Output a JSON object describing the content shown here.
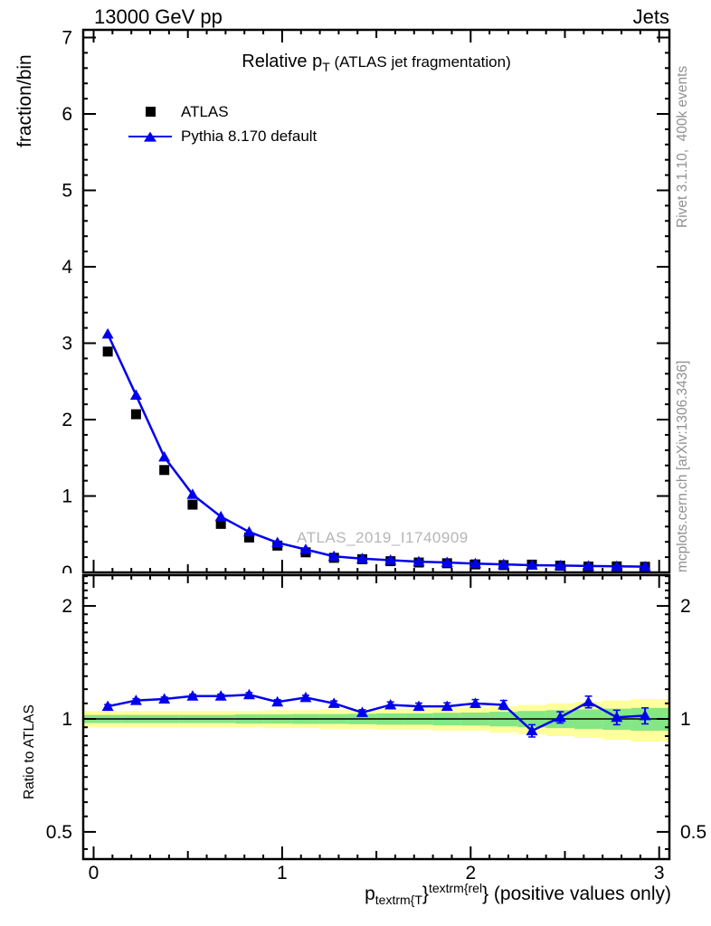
{
  "header": {
    "left": "13000 GeV pp",
    "right": "Jets"
  },
  "title": {
    "main": "Relative p",
    "sub": "T",
    "suffix": " (ATLAS jet fragmentation)"
  },
  "legend": {
    "items": [
      {
        "label": "ATLAS",
        "marker": "black-square"
      },
      {
        "label": "Pythia 8.170 default",
        "marker": "blue-line-triangle"
      }
    ]
  },
  "axis_labels": {
    "top_y": "fraction/bin",
    "ratio_y": "Ratio to ATLAS"
  },
  "xtitle": {
    "p": "p",
    "sub": "textrm{T",
    "brace1": "}",
    "sup": "textrm{rel",
    "brace2": "}",
    "rest": " (positive values only)"
  },
  "side_texts": {
    "top": "Rivet 3.1.10,  400k events",
    "bottom": "mcplots.cern.ch [arXiv:1306.3436]"
  },
  "watermark": "ATLAS_2019_I1740909",
  "colors": {
    "pythia_blue": "#0000ee",
    "atlas_black": "#000000",
    "band_yellow": "#ffff9c",
    "band_green": "#85e685",
    "side_gray": "#909090",
    "watermark_gray": "#b6b6b6"
  },
  "chart_data": {
    "type": "line",
    "title": "Relative pT (ATLAS jet fragmentation)",
    "xlabel": "pT^rel (positive values only)",
    "bin_width": 0.15,
    "x": [
      0.075,
      0.225,
      0.375,
      0.525,
      0.675,
      0.825,
      0.975,
      1.125,
      1.275,
      1.425,
      1.575,
      1.725,
      1.875,
      2.025,
      2.175,
      2.325,
      2.475,
      2.625,
      2.775,
      2.925
    ],
    "panels": [
      {
        "name": "fraction-per-bin",
        "ylabel": "fraction/bin",
        "yscale": "linear",
        "ylim": [
          0,
          7.1
        ],
        "xlim": [
          -0.055,
          3.055
        ],
        "yticks_labeled": [
          0,
          1,
          2,
          3,
          4,
          5,
          6,
          7
        ],
        "xticks_labeled": [
          0,
          1,
          2,
          3
        ],
        "grid": false,
        "series": [
          {
            "name": "ATLAS",
            "marker": "square",
            "color": "#000000",
            "values": [
              2.89,
              2.07,
              1.34,
              0.887,
              0.635,
              0.457,
              0.351,
              0.263,
              0.191,
              0.173,
              0.147,
              0.13,
              0.12,
              0.105,
              0.096,
              0.102,
              0.089,
              0.077,
              0.079,
              0.074
            ]
          },
          {
            "name": "Pythia 8.170 default",
            "marker": "triangle",
            "color": "#0000ee",
            "values": [
              3.12,
              2.32,
              1.51,
              1.02,
              0.73,
              0.53,
              0.39,
              0.3,
              0.21,
              0.18,
              0.16,
              0.14,
              0.13,
              0.115,
              0.105,
              0.095,
              0.09,
              0.085,
              0.08,
              0.075
            ]
          }
        ]
      },
      {
        "name": "ratio-to-atlas",
        "ylabel": "Ratio to ATLAS",
        "yscale": "log",
        "ylim": [
          0.42,
          2.41
        ],
        "yticks_labeled": [
          0.5,
          1,
          2
        ],
        "reference_line": 1.0,
        "ratio": [
          1.08,
          1.12,
          1.13,
          1.15,
          1.15,
          1.16,
          1.11,
          1.14,
          1.1,
          1.04,
          1.09,
          1.08,
          1.08,
          1.1,
          1.09,
          0.93,
          1.01,
          1.11,
          1.01,
          1.02
        ],
        "ratio_err": [
          0.012,
          0.012,
          0.013,
          0.013,
          0.014,
          0.015,
          0.015,
          0.016,
          0.017,
          0.018,
          0.02,
          0.022,
          0.024,
          0.026,
          0.03,
          0.035,
          0.035,
          0.04,
          0.045,
          0.05
        ],
        "band_yellow_half": [
          0.05,
          0.05,
          0.05,
          0.05,
          0.05,
          0.05,
          0.055,
          0.055,
          0.06,
          0.06,
          0.065,
          0.065,
          0.07,
          0.07,
          0.08,
          0.09,
          0.1,
          0.11,
          0.12,
          0.13
        ],
        "band_green_half": [
          0.025,
          0.025,
          0.025,
          0.025,
          0.025,
          0.028,
          0.028,
          0.03,
          0.03,
          0.032,
          0.035,
          0.035,
          0.038,
          0.04,
          0.045,
          0.05,
          0.055,
          0.06,
          0.065,
          0.07
        ]
      }
    ]
  }
}
